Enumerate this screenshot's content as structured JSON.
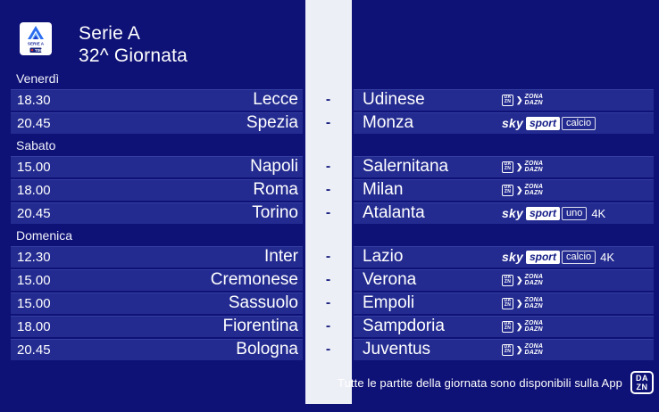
{
  "header": {
    "title": "Serie A",
    "subtitle": "32^ Giornata",
    "logo": {
      "label1": "SERIE A",
      "label2": "TIM"
    }
  },
  "separator": "-",
  "colors": {
    "background": "#0e1175",
    "row": "#232b90",
    "stripe": "#edeff7",
    "dash": "#1b2280",
    "sky_badge_text": "#131c86"
  },
  "logos": {
    "zona": {
      "badge": [
        "DA",
        "ZN"
      ],
      "chevron": "❯",
      "lines": [
        "ZONA",
        "DAZN"
      ]
    },
    "sky": {
      "brand": "sky",
      "product": "sport"
    }
  },
  "sections": [
    {
      "day": "Venerdì",
      "matches": [
        {
          "time": "18.30",
          "home": "Lecce",
          "away": "Udinese",
          "broadcast": {
            "type": "zona-dazn"
          }
        },
        {
          "time": "20.45",
          "home": "Spezia",
          "away": "Monza",
          "broadcast": {
            "type": "sky",
            "channel": "calcio",
            "tag": ""
          }
        }
      ]
    },
    {
      "day": "Sabato",
      "matches": [
        {
          "time": "15.00",
          "home": "Napoli",
          "away": "Salernitana",
          "broadcast": {
            "type": "zona-dazn"
          }
        },
        {
          "time": "18.00",
          "home": "Roma",
          "away": "Milan",
          "broadcast": {
            "type": "zona-dazn"
          }
        },
        {
          "time": "20.45",
          "home": "Torino",
          "away": "Atalanta",
          "broadcast": {
            "type": "sky",
            "channel": "uno",
            "tag": "4K"
          }
        }
      ]
    },
    {
      "day": "Domenica",
      "matches": [
        {
          "time": "12.30",
          "home": "Inter",
          "away": "Lazio",
          "broadcast": {
            "type": "sky",
            "channel": "calcio",
            "tag": "4K"
          }
        },
        {
          "time": "15.00",
          "home": "Cremonese",
          "away": "Verona",
          "broadcast": {
            "type": "zona-dazn"
          }
        },
        {
          "time": "15.00",
          "home": "Sassuolo",
          "away": "Empoli",
          "broadcast": {
            "type": "zona-dazn"
          }
        },
        {
          "time": "18.00",
          "home": "Fiorentina",
          "away": "Sampdoria",
          "broadcast": {
            "type": "zona-dazn"
          }
        },
        {
          "time": "20.45",
          "home": "Bologna",
          "away": "Juventus",
          "broadcast": {
            "type": "zona-dazn"
          }
        }
      ]
    }
  ],
  "footer": {
    "note": "Tutte le partite della giornata sono disponibili sulla App",
    "dazn_badge": [
      "DA",
      "ZN"
    ]
  }
}
